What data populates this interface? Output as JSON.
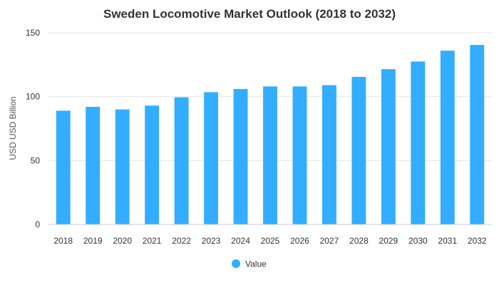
{
  "chart_data": {
    "type": "bar",
    "title": "Sweden Locomotive Market Outlook (2018 to 2032)",
    "xlabel": "",
    "ylabel": "USD USD Billion",
    "categories": [
      "2018",
      "2019",
      "2020",
      "2021",
      "2022",
      "2023",
      "2024",
      "2025",
      "2026",
      "2027",
      "2028",
      "2029",
      "2030",
      "2031",
      "2032"
    ],
    "series": [
      {
        "name": "Value",
        "color": "#33adff",
        "values": [
          89,
          92,
          90,
          93,
          99.5,
          103.5,
          106,
          108,
          108,
          109,
          115.5,
          121.5,
          127.5,
          136,
          140.5
        ]
      }
    ],
    "ylim": [
      0,
      150
    ],
    "yticks": [
      0,
      50,
      100,
      150
    ],
    "grid": true,
    "legend": "bottom-center"
  }
}
